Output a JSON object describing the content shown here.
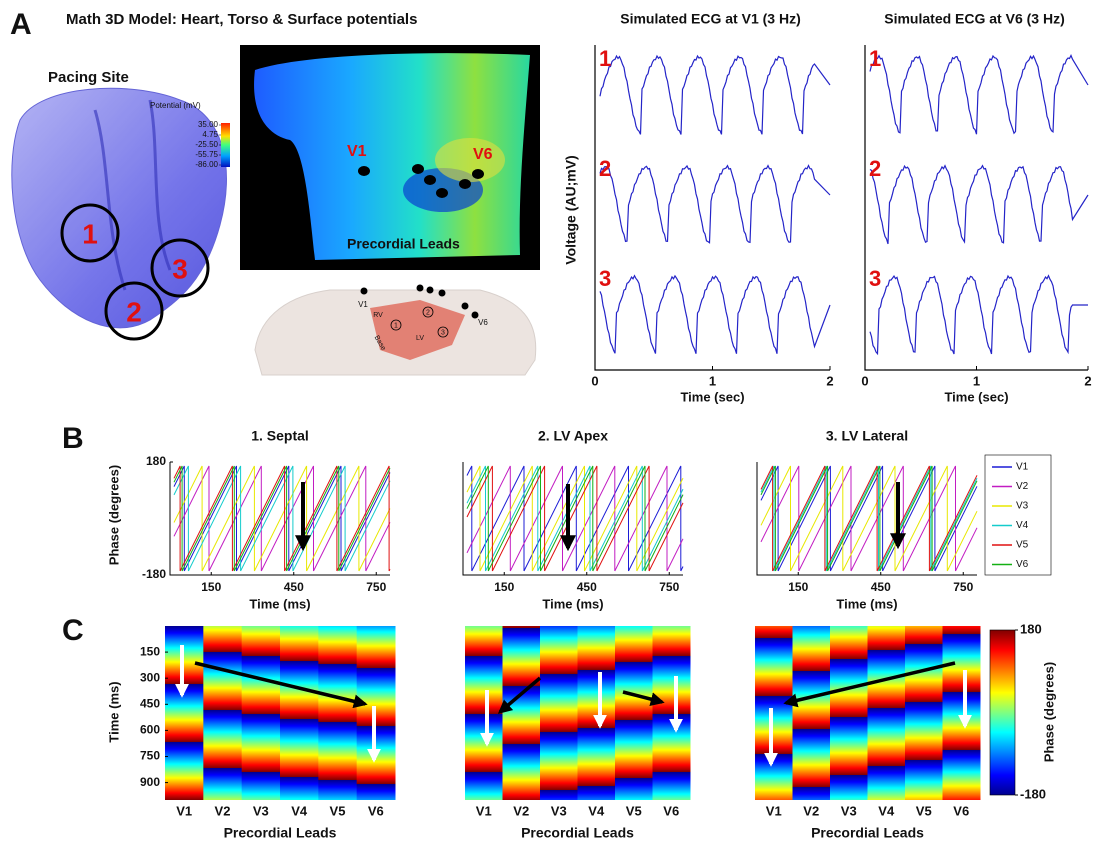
{
  "figure": {
    "A": {
      "label": "A",
      "title": "Math 3D Model: Heart, Torso & Surface potentials",
      "pacing_site": "Pacing Site",
      "sites": [
        "1",
        "2",
        "3"
      ],
      "potential_colorbar": {
        "title": "Potential (mV)",
        "ticks": [
          {
            "value": 35,
            "label": "35.00"
          },
          4.75,
          {
            "value": -25.5,
            "label": "-25.50"
          },
          -55.75,
          {
            "value": -86,
            "label": "-86.00"
          }
        ]
      },
      "torso_leads": [
        "V1",
        "V6"
      ],
      "torso_caption": "Precordial Leads",
      "schematic_labels": [
        "V1",
        "V6",
        "RV",
        "LV",
        "Base"
      ],
      "schematic_sites": [
        "1",
        "2",
        "3"
      ],
      "ecg": {
        "ylabel": "Voltage (AU;mV)",
        "xlabel": "Time (sec)",
        "xlim": [
          0,
          2
        ],
        "xticks": [
          0,
          1,
          2
        ],
        "panels": [
          {
            "title": "Simulated ECG at V1 (3 Hz)",
            "rows": [
              "1",
              "2",
              "3"
            ]
          },
          {
            "title": "Simulated ECG at V6 (3 Hz)",
            "rows": [
              "1",
              "2",
              "3"
            ]
          }
        ]
      }
    },
    "B": {
      "label": "B",
      "titles": [
        "1. Septal",
        "2. LV Apex",
        "3. LV Lateral"
      ],
      "ylabel": "Phase (degrees)",
      "xlabel": "Time (ms)",
      "ylim": [
        -180,
        180
      ],
      "yticks": [
        -180,
        180
      ],
      "xlim": [
        0,
        800
      ],
      "xticks": [
        150,
        450,
        750
      ],
      "leads": [
        {
          "name": "V1",
          "color": "#1c1cd6"
        },
        {
          "name": "V2",
          "color": "#c21cc2"
        },
        {
          "name": "V3",
          "color": "#e8e800"
        },
        {
          "name": "V4",
          "color": "#14cccc"
        },
        {
          "name": "V5",
          "color": "#e01010"
        },
        {
          "name": "V6",
          "color": "#14b014"
        }
      ]
    },
    "C": {
      "label": "C",
      "ylabel": "Time (ms)",
      "xlabel": "Precordial Leads",
      "categories": [
        "V1",
        "V2",
        "V3",
        "V4",
        "V5",
        "V6"
      ],
      "ylim": [
        0,
        1000
      ],
      "yticks": [
        150,
        300,
        450,
        600,
        750,
        900
      ],
      "colorbar": {
        "title": "Phase (degrees)",
        "lim": [
          -180,
          180
        ],
        "ticks": [
          180,
          -180
        ]
      }
    }
  }
}
